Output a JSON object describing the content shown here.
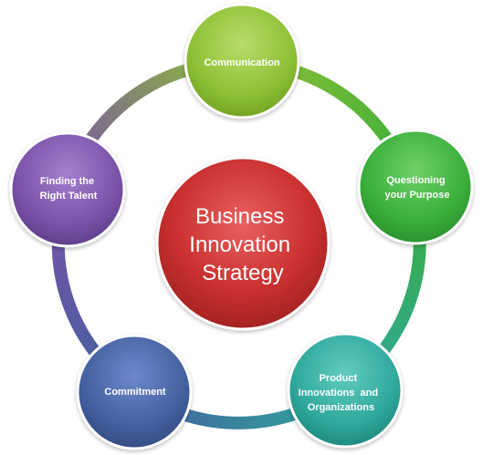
{
  "diagram": {
    "center": {
      "lines": [
        "Business",
        "Innovation",
        "Strategy"
      ]
    },
    "nodes": [
      {
        "id": "communication",
        "lines": [
          "Communication"
        ]
      },
      {
        "id": "questioning-your-purpose",
        "lines": [
          "Questioning",
          "your Purpose"
        ]
      },
      {
        "id": "product-innovations-and-organizations",
        "lines": [
          "Product",
          "Innovations  and",
          "Organizations"
        ]
      },
      {
        "id": "commitment",
        "lines": [
          "Commitment"
        ]
      },
      {
        "id": "finding-the-right-talent",
        "lines": [
          "Finding the",
          "Right Talent"
        ]
      }
    ]
  }
}
